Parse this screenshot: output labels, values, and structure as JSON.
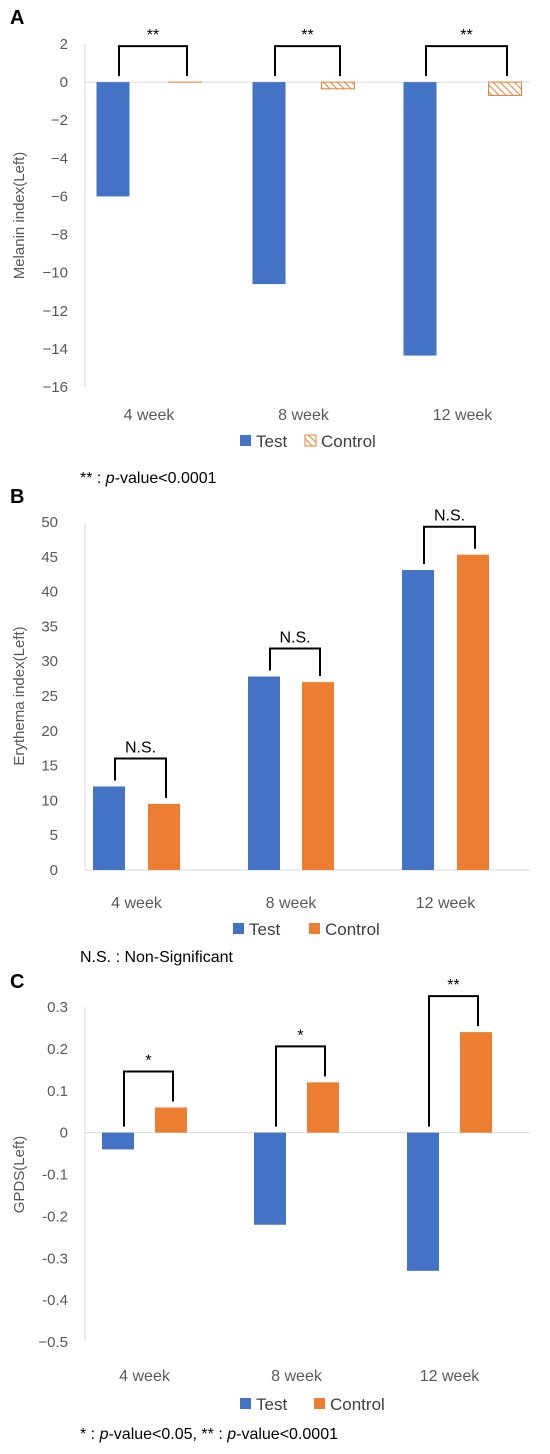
{
  "chart_data": [
    {
      "panel": "A",
      "type": "bar",
      "categories": [
        "4 week",
        "8 week",
        "12 week"
      ],
      "series": [
        {
          "name": "Test",
          "values": [
            -6.0,
            -10.6,
            -14.35
          ],
          "color": "#4472C4",
          "pattern": "solid"
        },
        {
          "name": "Control",
          "values": [
            0,
            -0.35,
            -0.7
          ],
          "color": "#ED7D31",
          "pattern": "hatched"
        }
      ],
      "ylabel": "Melanin index(Left)",
      "ylim": [
        -16,
        2
      ],
      "yticks": [
        2,
        0,
        -2,
        -4,
        -6,
        -8,
        -10,
        -12,
        -14,
        -16
      ],
      "ytick_labels": [
        "2",
        "0",
        "−2",
        "−4",
        "−6",
        "−8",
        "−10",
        "−12",
        "−14",
        "−16"
      ],
      "significance": [
        "**",
        "**",
        "**"
      ],
      "footnote": {
        "prefix": "** : ",
        "italic": "p",
        "suffix": "-value<0.0001"
      }
    },
    {
      "panel": "B",
      "type": "bar",
      "categories": [
        "4 week",
        "8 week",
        "12 week"
      ],
      "series": [
        {
          "name": "Test",
          "values": [
            12.0,
            27.8,
            43.1
          ],
          "color": "#4472C4",
          "pattern": "solid"
        },
        {
          "name": "Control",
          "values": [
            9.5,
            27.0,
            45.3
          ],
          "color": "#ED7D31",
          "pattern": "solid"
        }
      ],
      "ylabel": "Erythema index(Left)",
      "ylim": [
        0,
        50
      ],
      "yticks": [
        50,
        45,
        40,
        35,
        30,
        25,
        20,
        15,
        10,
        5,
        0
      ],
      "ytick_labels": [
        "50",
        "45",
        "40",
        "35",
        "30",
        "25",
        "20",
        "15",
        "10",
        "5",
        "0"
      ],
      "significance": [
        "N.S.",
        "N.S.",
        "N.S."
      ],
      "footnote": {
        "prefix": "N.S. : Non-Significant",
        "italic": "",
        "suffix": ""
      }
    },
    {
      "panel": "C",
      "type": "bar",
      "categories": [
        "4 week",
        "8 week",
        "12 week"
      ],
      "series": [
        {
          "name": "Test",
          "values": [
            -0.04,
            -0.22,
            -0.33
          ],
          "color": "#4472C4",
          "pattern": "solid"
        },
        {
          "name": "Control",
          "values": [
            0.06,
            0.12,
            0.24
          ],
          "color": "#ED7D31",
          "pattern": "solid"
        }
      ],
      "ylabel": "GPDS(Left)",
      "ylim": [
        -0.5,
        0.3
      ],
      "yticks": [
        0.3,
        0.2,
        0.1,
        0,
        -0.1,
        -0.2,
        -0.3,
        -0.4,
        -0.5
      ],
      "ytick_labels": [
        "0.3",
        "0.2",
        "0.1",
        "0",
        "-0.1",
        "-0.2",
        "-0.3",
        "-0.4",
        "−0.5"
      ],
      "significance": [
        "*",
        "*",
        "**"
      ],
      "footnote": {
        "prefix": "* : ",
        "italic": "p",
        "suffix": "-value<0.05, ** : ",
        "italic2": "p",
        "suffix2": "-value<0.0001"
      }
    }
  ]
}
